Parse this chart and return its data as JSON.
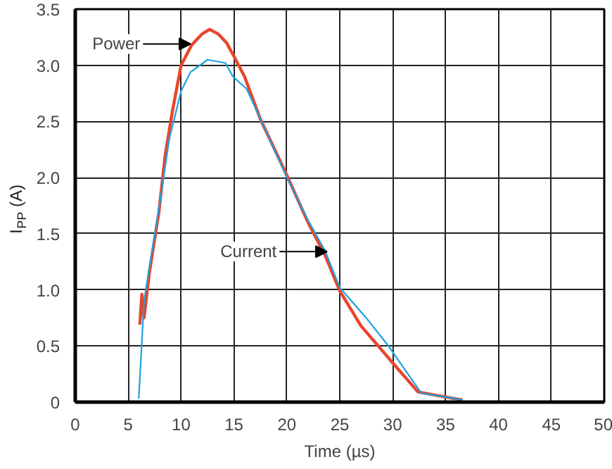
{
  "chart_data": {
    "type": "line",
    "xlabel": "Time (µs)",
    "ylabel": "I$_{PP}$ (A)",
    "xlim": [
      0,
      50
    ],
    "ylim": [
      0,
      3.5
    ],
    "xticks": [
      0,
      5,
      10,
      15,
      20,
      25,
      30,
      35,
      40,
      45,
      50
    ],
    "yticks": [
      0,
      0.5,
      {
        "value": 1,
        "label": "1.0"
      },
      1.5,
      {
        "value": 2,
        "label": "2.0"
      },
      2.5,
      {
        "value": 3,
        "label": "3.0"
      },
      3.5
    ],
    "grid": true,
    "marker": "none",
    "line_style": "solid",
    "series": [
      {
        "color": "#e8452c",
        "x": [
          6.1,
          6.3,
          6.5,
          7,
          7.9,
          8.5,
          9.2,
          10,
          11,
          12,
          12.7,
          13.5,
          14.3,
          15,
          16,
          17.5,
          20,
          22,
          23.6,
          25,
          27,
          30,
          32.4,
          35.3,
          36.6
        ],
        "values": [
          0.69,
          0.96,
          0.75,
          1.15,
          1.69,
          2.2,
          2.6,
          3.0,
          3.18,
          3.28,
          3.32,
          3.28,
          3.2,
          3.08,
          2.9,
          2.52,
          2.02,
          1.6,
          1.31,
          0.99,
          0.68,
          0.35,
          0.09,
          0.04,
          0.02
        ]
      },
      {
        "color": "#1ba1e2",
        "x": [
          6.0,
          6.5,
          7,
          7.85,
          8.9,
          10,
          10.9,
          12.5,
          14.2,
          14.9,
          16.2,
          18,
          20,
          22,
          23.6,
          25,
          27.5,
          29.6,
          32.7,
          35.3,
          36.6
        ],
        "values": [
          0.03,
          0.9,
          1.2,
          1.69,
          2.35,
          2.77,
          2.94,
          3.05,
          3.02,
          2.9,
          2.79,
          2.42,
          2.0,
          1.62,
          1.35,
          1.02,
          0.75,
          0.5,
          0.08,
          0.04,
          0.02
        ]
      }
    ],
    "annotations": [
      {
        "text": "Power",
        "x": 10.9,
        "y": 3.19
      },
      {
        "text": "Current",
        "x": 23.8,
        "y": 1.34
      }
    ]
  }
}
